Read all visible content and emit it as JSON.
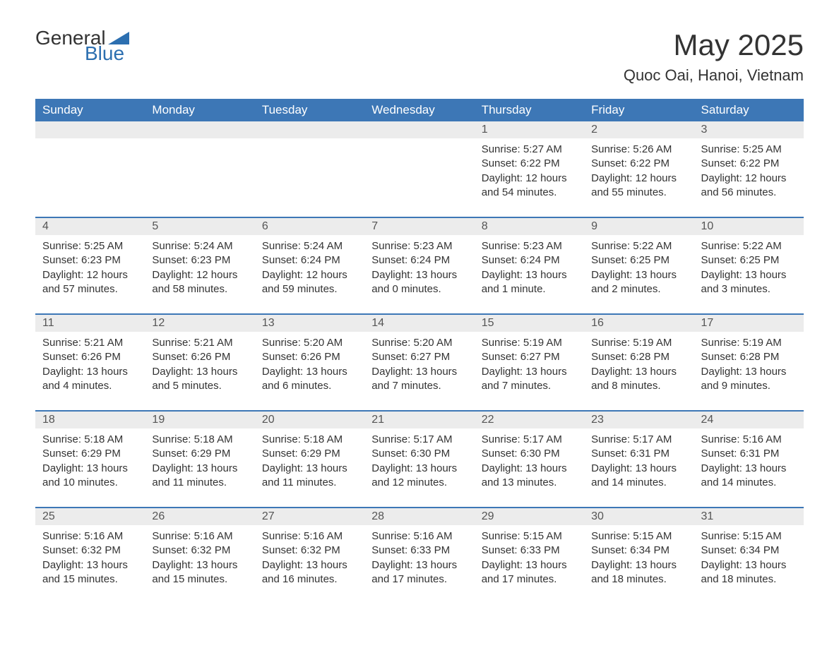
{
  "logo": {
    "text_general": "General",
    "text_blue": "Blue",
    "accent_color": "#2c6fb0"
  },
  "title": "May 2025",
  "location": "Quoc Oai, Hanoi, Vietnam",
  "colors": {
    "header_bg": "#3d77b6",
    "header_text": "#ffffff",
    "daynum_bg": "#ececec",
    "body_text": "#333333",
    "row_divider": "#3d77b6"
  },
  "daysOfWeek": [
    "Sunday",
    "Monday",
    "Tuesday",
    "Wednesday",
    "Thursday",
    "Friday",
    "Saturday"
  ],
  "weeks": [
    [
      null,
      null,
      null,
      null,
      {
        "n": "1",
        "sunrise": "Sunrise: 5:27 AM",
        "sunset": "Sunset: 6:22 PM",
        "daylight": "Daylight: 12 hours and 54 minutes."
      },
      {
        "n": "2",
        "sunrise": "Sunrise: 5:26 AM",
        "sunset": "Sunset: 6:22 PM",
        "daylight": "Daylight: 12 hours and 55 minutes."
      },
      {
        "n": "3",
        "sunrise": "Sunrise: 5:25 AM",
        "sunset": "Sunset: 6:22 PM",
        "daylight": "Daylight: 12 hours and 56 minutes."
      }
    ],
    [
      {
        "n": "4",
        "sunrise": "Sunrise: 5:25 AM",
        "sunset": "Sunset: 6:23 PM",
        "daylight": "Daylight: 12 hours and 57 minutes."
      },
      {
        "n": "5",
        "sunrise": "Sunrise: 5:24 AM",
        "sunset": "Sunset: 6:23 PM",
        "daylight": "Daylight: 12 hours and 58 minutes."
      },
      {
        "n": "6",
        "sunrise": "Sunrise: 5:24 AM",
        "sunset": "Sunset: 6:24 PM",
        "daylight": "Daylight: 12 hours and 59 minutes."
      },
      {
        "n": "7",
        "sunrise": "Sunrise: 5:23 AM",
        "sunset": "Sunset: 6:24 PM",
        "daylight": "Daylight: 13 hours and 0 minutes."
      },
      {
        "n": "8",
        "sunrise": "Sunrise: 5:23 AM",
        "sunset": "Sunset: 6:24 PM",
        "daylight": "Daylight: 13 hours and 1 minute."
      },
      {
        "n": "9",
        "sunrise": "Sunrise: 5:22 AM",
        "sunset": "Sunset: 6:25 PM",
        "daylight": "Daylight: 13 hours and 2 minutes."
      },
      {
        "n": "10",
        "sunrise": "Sunrise: 5:22 AM",
        "sunset": "Sunset: 6:25 PM",
        "daylight": "Daylight: 13 hours and 3 minutes."
      }
    ],
    [
      {
        "n": "11",
        "sunrise": "Sunrise: 5:21 AM",
        "sunset": "Sunset: 6:26 PM",
        "daylight": "Daylight: 13 hours and 4 minutes."
      },
      {
        "n": "12",
        "sunrise": "Sunrise: 5:21 AM",
        "sunset": "Sunset: 6:26 PM",
        "daylight": "Daylight: 13 hours and 5 minutes."
      },
      {
        "n": "13",
        "sunrise": "Sunrise: 5:20 AM",
        "sunset": "Sunset: 6:26 PM",
        "daylight": "Daylight: 13 hours and 6 minutes."
      },
      {
        "n": "14",
        "sunrise": "Sunrise: 5:20 AM",
        "sunset": "Sunset: 6:27 PM",
        "daylight": "Daylight: 13 hours and 7 minutes."
      },
      {
        "n": "15",
        "sunrise": "Sunrise: 5:19 AM",
        "sunset": "Sunset: 6:27 PM",
        "daylight": "Daylight: 13 hours and 7 minutes."
      },
      {
        "n": "16",
        "sunrise": "Sunrise: 5:19 AM",
        "sunset": "Sunset: 6:28 PM",
        "daylight": "Daylight: 13 hours and 8 minutes."
      },
      {
        "n": "17",
        "sunrise": "Sunrise: 5:19 AM",
        "sunset": "Sunset: 6:28 PM",
        "daylight": "Daylight: 13 hours and 9 minutes."
      }
    ],
    [
      {
        "n": "18",
        "sunrise": "Sunrise: 5:18 AM",
        "sunset": "Sunset: 6:29 PM",
        "daylight": "Daylight: 13 hours and 10 minutes."
      },
      {
        "n": "19",
        "sunrise": "Sunrise: 5:18 AM",
        "sunset": "Sunset: 6:29 PM",
        "daylight": "Daylight: 13 hours and 11 minutes."
      },
      {
        "n": "20",
        "sunrise": "Sunrise: 5:18 AM",
        "sunset": "Sunset: 6:29 PM",
        "daylight": "Daylight: 13 hours and 11 minutes."
      },
      {
        "n": "21",
        "sunrise": "Sunrise: 5:17 AM",
        "sunset": "Sunset: 6:30 PM",
        "daylight": "Daylight: 13 hours and 12 minutes."
      },
      {
        "n": "22",
        "sunrise": "Sunrise: 5:17 AM",
        "sunset": "Sunset: 6:30 PM",
        "daylight": "Daylight: 13 hours and 13 minutes."
      },
      {
        "n": "23",
        "sunrise": "Sunrise: 5:17 AM",
        "sunset": "Sunset: 6:31 PM",
        "daylight": "Daylight: 13 hours and 14 minutes."
      },
      {
        "n": "24",
        "sunrise": "Sunrise: 5:16 AM",
        "sunset": "Sunset: 6:31 PM",
        "daylight": "Daylight: 13 hours and 14 minutes."
      }
    ],
    [
      {
        "n": "25",
        "sunrise": "Sunrise: 5:16 AM",
        "sunset": "Sunset: 6:32 PM",
        "daylight": "Daylight: 13 hours and 15 minutes."
      },
      {
        "n": "26",
        "sunrise": "Sunrise: 5:16 AM",
        "sunset": "Sunset: 6:32 PM",
        "daylight": "Daylight: 13 hours and 15 minutes."
      },
      {
        "n": "27",
        "sunrise": "Sunrise: 5:16 AM",
        "sunset": "Sunset: 6:32 PM",
        "daylight": "Daylight: 13 hours and 16 minutes."
      },
      {
        "n": "28",
        "sunrise": "Sunrise: 5:16 AM",
        "sunset": "Sunset: 6:33 PM",
        "daylight": "Daylight: 13 hours and 17 minutes."
      },
      {
        "n": "29",
        "sunrise": "Sunrise: 5:15 AM",
        "sunset": "Sunset: 6:33 PM",
        "daylight": "Daylight: 13 hours and 17 minutes."
      },
      {
        "n": "30",
        "sunrise": "Sunrise: 5:15 AM",
        "sunset": "Sunset: 6:34 PM",
        "daylight": "Daylight: 13 hours and 18 minutes."
      },
      {
        "n": "31",
        "sunrise": "Sunrise: 5:15 AM",
        "sunset": "Sunset: 6:34 PM",
        "daylight": "Daylight: 13 hours and 18 minutes."
      }
    ]
  ]
}
